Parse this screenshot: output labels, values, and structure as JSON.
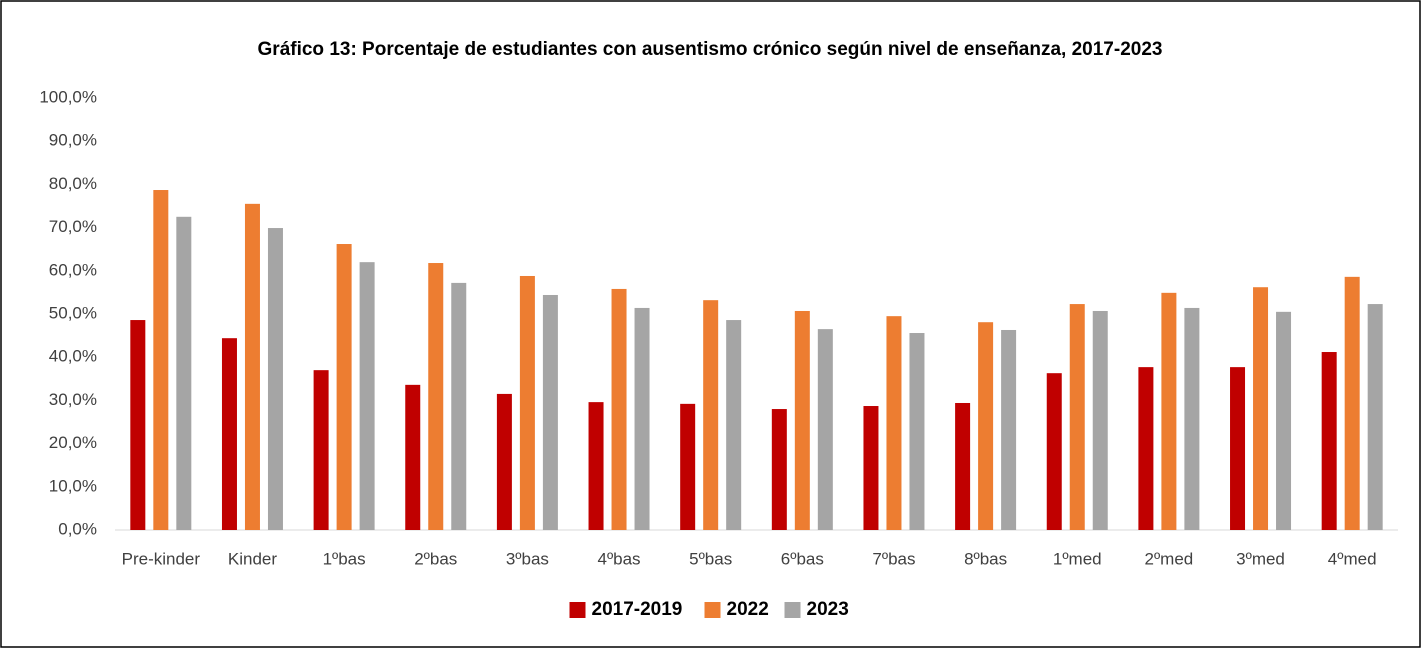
{
  "chart_data": {
    "type": "bar",
    "title": "Gráfico 13: Porcentaje de estudiantes con ausentismo crónico según nivel de enseñanza, 2017-2023",
    "categories": [
      "Pre-kinder",
      "Kinder",
      "1ºbas",
      "2ºbas",
      "3ºbas",
      "4ºbas",
      "5ºbas",
      "6ºbas",
      "7ºbas",
      "8ºbas",
      "1ºmed",
      "2ºmed",
      "3ºmed",
      "4ºmed"
    ],
    "series": [
      {
        "name": "2017-2019",
        "color": "#c00000",
        "values": [
          48.6,
          44.4,
          37.0,
          33.6,
          31.5,
          29.6,
          29.2,
          28.0,
          28.7,
          29.4,
          36.3,
          37.7,
          37.7,
          41.2
        ]
      },
      {
        "name": "2022",
        "color": "#ed7d31",
        "values": [
          78.7,
          75.5,
          66.2,
          61.8,
          58.8,
          55.8,
          53.2,
          50.7,
          49.5,
          48.1,
          52.3,
          54.9,
          56.2,
          58.6
        ]
      },
      {
        "name": "2023",
        "color": "#a5a5a5",
        "values": [
          72.5,
          69.9,
          62.0,
          57.2,
          54.4,
          51.4,
          48.6,
          46.5,
          45.6,
          46.3,
          50.7,
          51.4,
          50.5,
          52.3
        ]
      }
    ],
    "ylim": [
      0,
      100
    ],
    "yticks": [
      {
        "value": 0,
        "label": "0,0%"
      },
      {
        "value": 10,
        "label": "10,0%"
      },
      {
        "value": 20,
        "label": "20,0%"
      },
      {
        "value": 30,
        "label": "30,0%"
      },
      {
        "value": 40,
        "label": "40,0%"
      },
      {
        "value": 50,
        "label": "50,0%"
      },
      {
        "value": 60,
        "label": "60,0%"
      },
      {
        "value": 70,
        "label": "70,0%"
      },
      {
        "value": 80,
        "label": "80,0%"
      },
      {
        "value": 90,
        "label": "90,0%"
      },
      {
        "value": 100,
        "label": "100,0%"
      }
    ],
    "grid": false,
    "legend": "bottom"
  }
}
